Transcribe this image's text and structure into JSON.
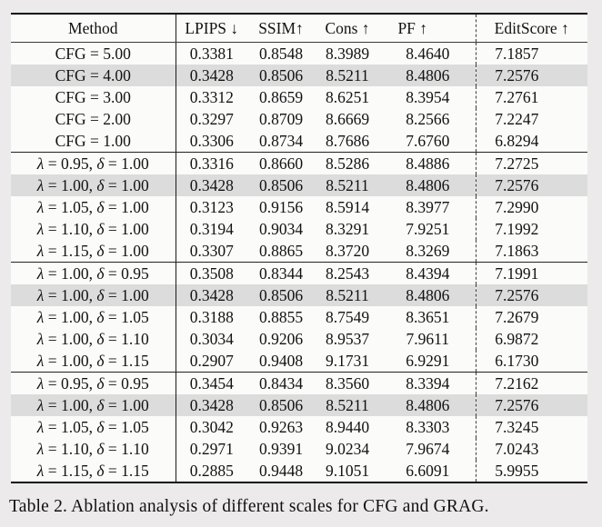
{
  "page": {
    "caption": "Table 2. Ablation analysis of different scales for CFG and GRAG."
  },
  "table": {
    "columns": [
      "Method",
      "LPIPS ↓",
      "SSIM↑",
      "Cons ↑",
      "PF ↑",
      "EditScore ↑"
    ],
    "highlight_color": "#dcdcdc",
    "groups": [
      {
        "rows": [
          {
            "method": "CFG = 5.00",
            "values": [
              "0.3381",
              "0.8548",
              "8.3989",
              "8.4640",
              "7.1857"
            ],
            "highlight": false
          },
          {
            "method": "CFG = 4.00",
            "values": [
              "0.3428",
              "0.8506",
              "8.5211",
              "8.4806",
              "7.2576"
            ],
            "highlight": true
          },
          {
            "method": "CFG = 3.00",
            "values": [
              "0.3312",
              "0.8659",
              "8.6251",
              "8.3954",
              "7.2761"
            ],
            "highlight": false
          },
          {
            "method": "CFG = 2.00",
            "values": [
              "0.3297",
              "0.8709",
              "8.6669",
              "8.2566",
              "7.2247"
            ],
            "highlight": false
          },
          {
            "method": "CFG = 1.00",
            "values": [
              "0.3306",
              "0.8734",
              "8.7686",
              "7.6760",
              "6.8294"
            ],
            "highlight": false
          }
        ]
      },
      {
        "rows": [
          {
            "method": "λ = 0.95, δ = 1.00",
            "values": [
              "0.3316",
              "0.8660",
              "8.5286",
              "8.4886",
              "7.2725"
            ],
            "highlight": false
          },
          {
            "method": "λ = 1.00, δ = 1.00",
            "values": [
              "0.3428",
              "0.8506",
              "8.5211",
              "8.4806",
              "7.2576"
            ],
            "highlight": true
          },
          {
            "method": "λ = 1.05, δ = 1.00",
            "values": [
              "0.3123",
              "0.9156",
              "8.5914",
              "8.3977",
              "7.2990"
            ],
            "highlight": false
          },
          {
            "method": "λ = 1.10, δ = 1.00",
            "values": [
              "0.3194",
              "0.9034",
              "8.3291",
              "7.9251",
              "7.1992"
            ],
            "highlight": false
          },
          {
            "method": "λ = 1.15, δ = 1.00",
            "values": [
              "0.3307",
              "0.8865",
              "8.3720",
              "8.3269",
              "7.1863"
            ],
            "highlight": false
          }
        ]
      },
      {
        "rows": [
          {
            "method": "λ = 1.00, δ = 0.95",
            "values": [
              "0.3508",
              "0.8344",
              "8.2543",
              "8.4394",
              "7.1991"
            ],
            "highlight": false
          },
          {
            "method": "λ = 1.00, δ = 1.00",
            "values": [
              "0.3428",
              "0.8506",
              "8.5211",
              "8.4806",
              "7.2576"
            ],
            "highlight": true
          },
          {
            "method": "λ = 1.00, δ = 1.05",
            "values": [
              "0.3188",
              "0.8855",
              "8.7549",
              "8.3651",
              "7.2679"
            ],
            "highlight": false
          },
          {
            "method": "λ = 1.00, δ = 1.10",
            "values": [
              "0.3034",
              "0.9206",
              "8.9537",
              "7.9611",
              "6.9872"
            ],
            "highlight": false
          },
          {
            "method": "λ = 1.00, δ = 1.15",
            "values": [
              "0.2907",
              "0.9408",
              "9.1731",
              "6.9291",
              "6.1730"
            ],
            "highlight": false
          }
        ]
      },
      {
        "rows": [
          {
            "method": "λ = 0.95, δ = 0.95",
            "values": [
              "0.3454",
              "0.8434",
              "8.3560",
              "8.3394",
              "7.2162"
            ],
            "highlight": false
          },
          {
            "method": "λ = 1.00, δ = 1.00",
            "values": [
              "0.3428",
              "0.8506",
              "8.5211",
              "8.4806",
              "7.2576"
            ],
            "highlight": true
          },
          {
            "method": "λ = 1.05, δ = 1.05",
            "values": [
              "0.3042",
              "0.9263",
              "8.9440",
              "8.3303",
              "7.3245"
            ],
            "highlight": false
          },
          {
            "method": "λ = 1.10, δ = 1.10",
            "values": [
              "0.2971",
              "0.9391",
              "9.0234",
              "7.9674",
              "7.0243"
            ],
            "highlight": false
          },
          {
            "method": "λ = 1.15, δ = 1.15",
            "values": [
              "0.2885",
              "0.9448",
              "9.1051",
              "6.6091",
              "5.9955"
            ],
            "highlight": false
          }
        ]
      }
    ]
  }
}
